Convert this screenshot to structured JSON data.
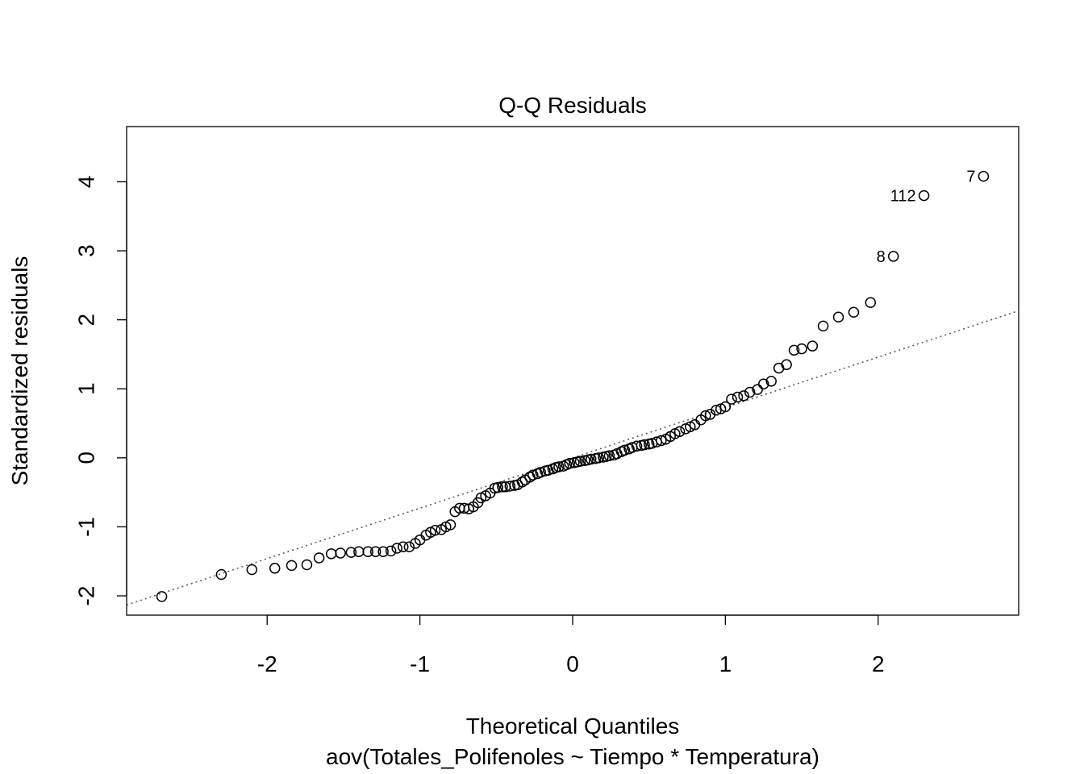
{
  "chart_data": {
    "type": "scatter",
    "title": "Q-Q Residuals",
    "xlabel": "Theoretical Quantiles",
    "ylabel": "Standardized residuals",
    "subtitle": "aov(Totales_Polifenoles ~ Tiempo * Temperatura)",
    "xlim": [
      -2.92,
      2.92
    ],
    "ylim": [
      -2.28,
      4.8
    ],
    "x_ticks": [
      -2,
      -1,
      0,
      1,
      2
    ],
    "y_ticks": [
      -2,
      -1,
      0,
      1,
      2,
      3,
      4
    ],
    "reference_line": {
      "style": "dotted",
      "intercept": 0.0,
      "slope": 0.73
    },
    "grid": false,
    "points": [
      [
        -2.69,
        -2.01
      ],
      [
        -2.3,
        -1.69
      ],
      [
        -2.1,
        -1.62
      ],
      [
        -1.95,
        -1.6
      ],
      [
        -1.84,
        -1.56
      ],
      [
        -1.74,
        -1.55
      ],
      [
        -1.66,
        -1.45
      ],
      [
        -1.58,
        -1.39
      ],
      [
        -1.52,
        -1.38
      ],
      [
        -1.45,
        -1.37
      ],
      [
        -1.4,
        -1.36
      ],
      [
        -1.34,
        -1.36
      ],
      [
        -1.29,
        -1.36
      ],
      [
        -1.24,
        -1.36
      ],
      [
        -1.19,
        -1.35
      ],
      [
        -1.15,
        -1.31
      ],
      [
        -1.11,
        -1.29
      ],
      [
        -1.07,
        -1.29
      ],
      [
        -1.03,
        -1.24
      ],
      [
        -1.0,
        -1.19
      ],
      [
        -0.96,
        -1.12
      ],
      [
        -0.93,
        -1.08
      ],
      [
        -0.9,
        -1.05
      ],
      [
        -0.86,
        -1.04
      ],
      [
        -0.83,
        -1.0
      ],
      [
        -0.8,
        -0.97
      ],
      [
        -0.77,
        -0.78
      ],
      [
        -0.74,
        -0.73
      ],
      [
        -0.71,
        -0.73
      ],
      [
        -0.68,
        -0.74
      ],
      [
        -0.65,
        -0.71
      ],
      [
        -0.62,
        -0.65
      ],
      [
        -0.6,
        -0.58
      ],
      [
        -0.57,
        -0.55
      ],
      [
        -0.54,
        -0.51
      ],
      [
        -0.51,
        -0.44
      ],
      [
        -0.49,
        -0.43
      ],
      [
        -0.46,
        -0.42
      ],
      [
        -0.44,
        -0.42
      ],
      [
        -0.41,
        -0.41
      ],
      [
        -0.38,
        -0.4
      ],
      [
        -0.36,
        -0.39
      ],
      [
        -0.33,
        -0.35
      ],
      [
        -0.31,
        -0.32
      ],
      [
        -0.28,
        -0.28
      ],
      [
        -0.26,
        -0.25
      ],
      [
        -0.23,
        -0.23
      ],
      [
        -0.21,
        -0.21
      ],
      [
        -0.18,
        -0.19
      ],
      [
        -0.16,
        -0.18
      ],
      [
        -0.13,
        -0.16
      ],
      [
        -0.11,
        -0.14
      ],
      [
        -0.09,
        -0.13
      ],
      [
        -0.06,
        -0.12
      ],
      [
        -0.04,
        -0.1
      ],
      [
        -0.02,
        -0.08
      ],
      [
        0.01,
        -0.07
      ],
      [
        0.03,
        -0.06
      ],
      [
        0.05,
        -0.05
      ],
      [
        0.08,
        -0.04
      ],
      [
        0.1,
        -0.03
      ],
      [
        0.12,
        -0.02
      ],
      [
        0.15,
        -0.01
      ],
      [
        0.17,
        0.0
      ],
      [
        0.2,
        0.01
      ],
      [
        0.22,
        0.02
      ],
      [
        0.24,
        0.03
      ],
      [
        0.27,
        0.04
      ],
      [
        0.29,
        0.06
      ],
      [
        0.32,
        0.09
      ],
      [
        0.34,
        0.11
      ],
      [
        0.37,
        0.13
      ],
      [
        0.39,
        0.15
      ],
      [
        0.42,
        0.17
      ],
      [
        0.45,
        0.18
      ],
      [
        0.47,
        0.19
      ],
      [
        0.5,
        0.2
      ],
      [
        0.52,
        0.21
      ],
      [
        0.55,
        0.23
      ],
      [
        0.58,
        0.25
      ],
      [
        0.61,
        0.27
      ],
      [
        0.64,
        0.31
      ],
      [
        0.67,
        0.35
      ],
      [
        0.7,
        0.38
      ],
      [
        0.74,
        0.42
      ],
      [
        0.77,
        0.45
      ],
      [
        0.8,
        0.48
      ],
      [
        0.84,
        0.55
      ],
      [
        0.87,
        0.61
      ],
      [
        0.9,
        0.63
      ],
      [
        0.94,
        0.69
      ],
      [
        0.97,
        0.71
      ],
      [
        1.0,
        0.74
      ],
      [
        1.04,
        0.85
      ],
      [
        1.08,
        0.88
      ],
      [
        1.12,
        0.9
      ],
      [
        1.16,
        0.95
      ],
      [
        1.21,
        0.99
      ],
      [
        1.25,
        1.07
      ],
      [
        1.3,
        1.11
      ],
      [
        1.35,
        1.3
      ],
      [
        1.4,
        1.35
      ],
      [
        1.45,
        1.56
      ],
      [
        1.5,
        1.58
      ],
      [
        1.57,
        1.62
      ],
      [
        1.64,
        1.91
      ],
      [
        1.74,
        2.04
      ],
      [
        1.84,
        2.11
      ],
      [
        1.95,
        2.25
      ],
      [
        2.1,
        2.92
      ],
      [
        2.3,
        3.8
      ],
      [
        2.69,
        4.08
      ]
    ],
    "point_labels": [
      {
        "x": 2.1,
        "y": 2.92,
        "text": "8"
      },
      {
        "x": 2.3,
        "y": 3.8,
        "text": "112"
      },
      {
        "x": 2.69,
        "y": 4.08,
        "text": "7"
      }
    ]
  }
}
